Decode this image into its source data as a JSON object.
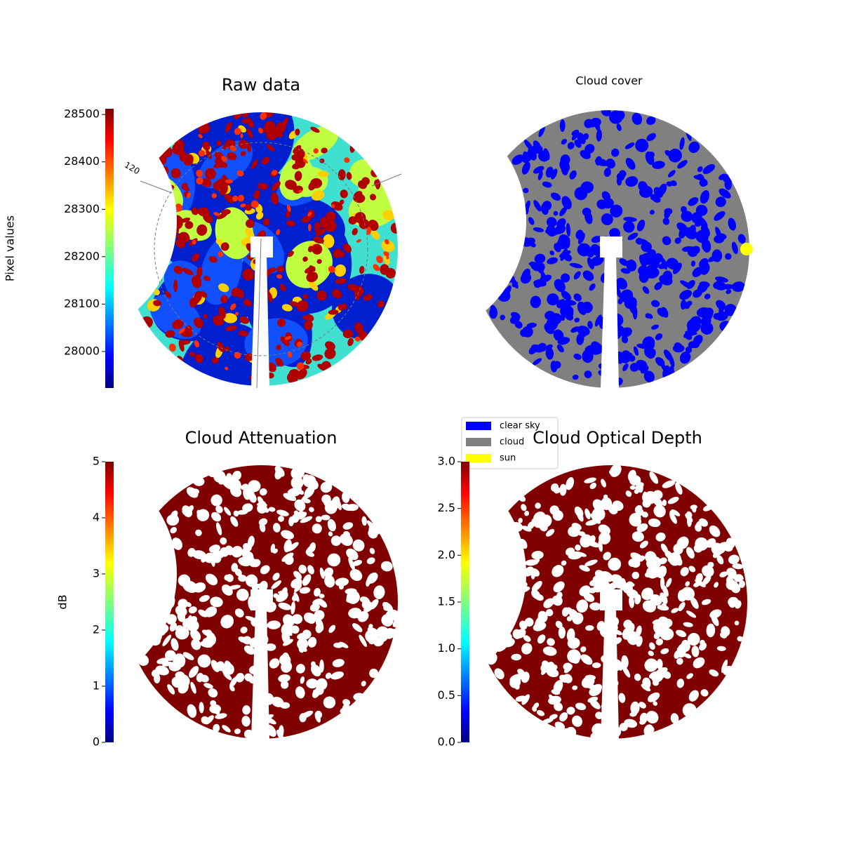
{
  "chart_data": [
    {
      "type": "image",
      "title": "Raw data",
      "colorbar_label": "Pixel values",
      "colormap": "jet",
      "ylim": [
        27923,
        28512
      ],
      "yticks": [
        28000,
        28100,
        28200,
        28300,
        28400,
        28500
      ],
      "polar_label": "120"
    },
    {
      "type": "classification",
      "title": "Cloud cover",
      "series": [
        {
          "name": "clear sky",
          "color": "#0000ff"
        },
        {
          "name": "cloud",
          "color": "#808080"
        },
        {
          "name": "sun",
          "color": "#ffff00"
        }
      ]
    },
    {
      "type": "image",
      "title": "Cloud Attenuation",
      "colorbar_label": "dB",
      "colormap": "jet",
      "ylim": [
        0,
        5
      ],
      "yticks": [
        0,
        1,
        2,
        3,
        4,
        5
      ]
    },
    {
      "type": "image",
      "title": "Cloud Optical Depth",
      "colormap": "jet",
      "ylim": [
        0,
        3
      ],
      "yticks": [
        {
          "value": 0,
          "label": "0.0"
        },
        {
          "value": 0.5,
          "label": "0.5"
        },
        {
          "value": 1,
          "label": "1.0"
        },
        {
          "value": 1.5,
          "label": "1.5"
        },
        {
          "value": 2,
          "label": "2.0"
        },
        {
          "value": 2.5,
          "label": "2.5"
        },
        {
          "value": 3,
          "label": "3.0"
        }
      ]
    }
  ]
}
